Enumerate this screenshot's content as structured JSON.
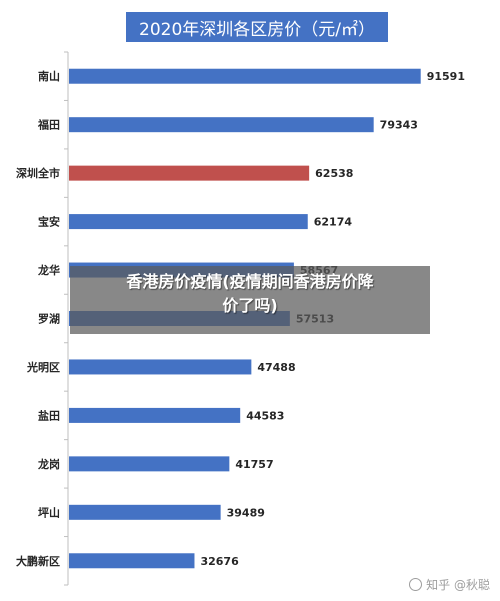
{
  "chart_data": {
    "type": "bar",
    "orientation": "horizontal",
    "title": "2020年深圳各区房价（元/㎡）",
    "categories": [
      "南山",
      "福田",
      "深圳全市",
      "宝安",
      "龙华",
      "罗湖",
      "光明区",
      "盐田",
      "龙岗",
      "坪山",
      "大鹏新区"
    ],
    "values": [
      91591,
      79343,
      62538,
      62174,
      58567,
      57513,
      47488,
      44583,
      41757,
      39489,
      32676
    ],
    "highlight_category": "深圳全市",
    "xlim": [
      0,
      100000
    ],
    "grid": false,
    "colors": {
      "bar": "#4472c4",
      "highlight": "#c0504d",
      "axis": "#bfbfbf",
      "label": "#262626"
    }
  },
  "overlay": {
    "line1": "香港房价疫情(疫情期间香港房价降",
    "line2": "价了吗)"
  },
  "watermark": {
    "text": "知乎 @秋聪"
  }
}
